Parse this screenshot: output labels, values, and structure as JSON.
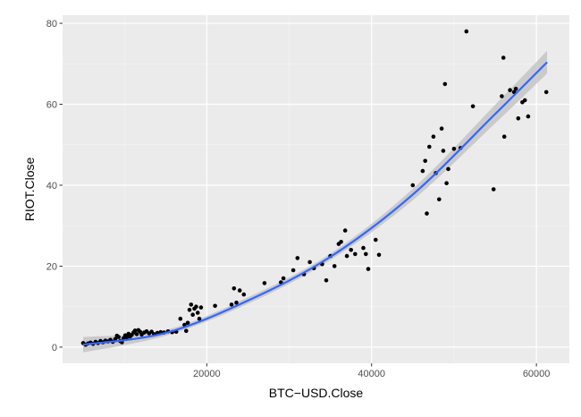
{
  "chart_data": {
    "type": "scatter",
    "title": "",
    "xlabel": "BTC−USD.Close",
    "ylabel": "RIOT.Close",
    "xlim": [
      2500,
      64000
    ],
    "ylim": [
      -4,
      82
    ],
    "x_ticks": [
      20000,
      40000,
      60000
    ],
    "x_tick_labels": [
      "20000",
      "40000",
      "60000"
    ],
    "y_ticks": [
      0,
      20,
      40,
      60,
      80
    ],
    "y_tick_labels": [
      "0",
      "20",
      "40",
      "60",
      "80"
    ],
    "grid": true,
    "legend": "none",
    "colors": {
      "panel_background": "#ebebeb",
      "grid_major": "#ffffff",
      "grid_minor": "#f5f5f5",
      "points": "#000000",
      "smooth_line": "#3366ff",
      "confidence_band": "#bfbfbf"
    },
    "points": [
      [
        5000,
        1.0
      ],
      [
        5300,
        0.6
      ],
      [
        5600,
        0.9
      ],
      [
        5900,
        1.1
      ],
      [
        6200,
        0.8
      ],
      [
        6500,
        1.3
      ],
      [
        6800,
        1.0
      ],
      [
        7100,
        1.5
      ],
      [
        7400,
        1.2
      ],
      [
        7700,
        1.6
      ],
      [
        8000,
        1.4
      ],
      [
        8300,
        1.8
      ],
      [
        8600,
        1.3
      ],
      [
        8900,
        2.0
      ],
      [
        9100,
        2.8
      ],
      [
        9300,
        2.5
      ],
      [
        9500,
        1.5
      ],
      [
        9700,
        1.2
      ],
      [
        9900,
        2.2
      ],
      [
        10100,
        2.9
      ],
      [
        10300,
        2.4
      ],
      [
        10500,
        3.3
      ],
      [
        10700,
        2.6
      ],
      [
        10900,
        3.0
      ],
      [
        11100,
        3.6
      ],
      [
        11300,
        4.1
      ],
      [
        11500,
        3.2
      ],
      [
        11700,
        4.2
      ],
      [
        11900,
        3.8
      ],
      [
        12100,
        3.1
      ],
      [
        12400,
        3.6
      ],
      [
        12700,
        3.9
      ],
      [
        13000,
        3.4
      ],
      [
        13300,
        3.8
      ],
      [
        13600,
        3.2
      ],
      [
        14000,
        3.5
      ],
      [
        14400,
        3.7
      ],
      [
        14800,
        3.6
      ],
      [
        15300,
        3.9
      ],
      [
        15800,
        3.7
      ],
      [
        16300,
        3.8
      ],
      [
        16800,
        7.0
      ],
      [
        17300,
        5.5
      ],
      [
        17500,
        4.0
      ],
      [
        17700,
        6.0
      ],
      [
        17900,
        9.2
      ],
      [
        18100,
        10.5
      ],
      [
        18300,
        8.0
      ],
      [
        18500,
        9.5
      ],
      [
        18700,
        10.0
      ],
      [
        18900,
        8.5
      ],
      [
        19100,
        7.0
      ],
      [
        19300,
        9.8
      ],
      [
        21000,
        10.2
      ],
      [
        23000,
        10.5
      ],
      [
        23300,
        14.5
      ],
      [
        23600,
        11.0
      ],
      [
        24000,
        14.0
      ],
      [
        24500,
        13.0
      ],
      [
        27000,
        15.8
      ],
      [
        29000,
        16.0
      ],
      [
        29300,
        17.0
      ],
      [
        30500,
        19.0
      ],
      [
        31000,
        22.0
      ],
      [
        31800,
        18.0
      ],
      [
        32500,
        21.0
      ],
      [
        33000,
        19.5
      ],
      [
        34000,
        20.5
      ],
      [
        34500,
        16.5
      ],
      [
        35000,
        22.5
      ],
      [
        35500,
        20.0
      ],
      [
        36000,
        25.5
      ],
      [
        36300,
        26.0
      ],
      [
        36800,
        28.8
      ],
      [
        37000,
        22.5
      ],
      [
        37500,
        24.0
      ],
      [
        38000,
        23.0
      ],
      [
        39000,
        24.5
      ],
      [
        39300,
        23.0
      ],
      [
        39600,
        19.3
      ],
      [
        40500,
        26.5
      ],
      [
        40900,
        22.8
      ],
      [
        45000,
        40.0
      ],
      [
        46200,
        43.5
      ],
      [
        46500,
        46.0
      ],
      [
        46700,
        33.0
      ],
      [
        47000,
        49.5
      ],
      [
        47500,
        52.0
      ],
      [
        47800,
        43.0
      ],
      [
        48200,
        36.5
      ],
      [
        48500,
        54.0
      ],
      [
        48700,
        48.5
      ],
      [
        48900,
        65.0
      ],
      [
        49100,
        40.5
      ],
      [
        49300,
        44.0
      ],
      [
        50000,
        49.0
      ],
      [
        50800,
        49.2
      ],
      [
        51500,
        78.0
      ],
      [
        52300,
        59.5
      ],
      [
        54800,
        39.0
      ],
      [
        55800,
        62.0
      ],
      [
        56000,
        71.5
      ],
      [
        56100,
        52.0
      ],
      [
        56800,
        63.5
      ],
      [
        57300,
        63.0
      ],
      [
        57500,
        63.8
      ],
      [
        57800,
        56.5
      ],
      [
        58300,
        60.5
      ],
      [
        58600,
        61.0
      ],
      [
        59000,
        57.0
      ],
      [
        61200,
        63.0
      ]
    ],
    "series": [
      {
        "values": [
          [
            5000,
            0.6
          ],
          [
            15000,
            3.5
          ],
          [
            25000,
            11.5
          ],
          [
            35000,
            22.3
          ],
          [
            45000,
            37.7
          ],
          [
            55000,
            57.6
          ],
          [
            61300,
            70.4
          ]
        ]
      }
    ],
    "confidence_band": {
      "x": [
        5000,
        15000,
        25000,
        35000,
        45000,
        55000,
        61300
      ],
      "lower": [
        -1.3,
        2.8,
        10.7,
        21.5,
        36.3,
        55.3,
        67.6
      ],
      "upper": [
        2.5,
        4.2,
        12.3,
        23.1,
        39.1,
        59.9,
        73.2
      ]
    }
  }
}
